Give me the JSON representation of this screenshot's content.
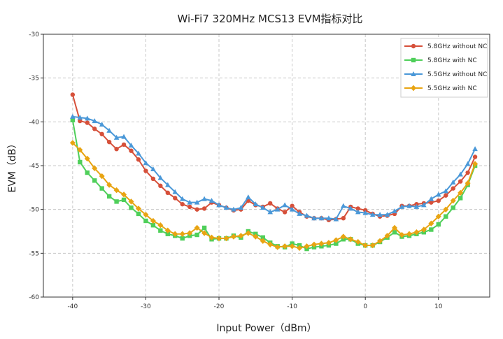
{
  "chart_data": {
    "type": "line",
    "title": "Wi-Fi7 320MHz MCS13 EVM指标对比",
    "xlabel": "Input Power（dBm）",
    "ylabel": "EVM（dB）",
    "xlim": [
      -44,
      17
    ],
    "ylim": [
      -60,
      -30
    ],
    "xticks": [
      -40,
      -30,
      -20,
      -10,
      0,
      10
    ],
    "yticks": [
      -60,
      -55,
      -50,
      -45,
      -40,
      -35,
      -30
    ],
    "grid": true,
    "legend_position": "top-right",
    "x": [
      -40,
      -39,
      -38,
      -37,
      -36,
      -35,
      -34,
      -33,
      -32,
      -31,
      -30,
      -29,
      -28,
      -27,
      -26,
      -25,
      -24,
      -23,
      -22,
      -21,
      -20,
      -19,
      -18,
      -17,
      -16,
      -15,
      -14,
      -13,
      -12,
      -11,
      -10,
      -9,
      -8,
      -7,
      -6,
      -5,
      -4,
      -3,
      -2,
      -1,
      0,
      1,
      2,
      3,
      4,
      5,
      6,
      7,
      8,
      9,
      10,
      11,
      12,
      13,
      14,
      15
    ],
    "series": [
      {
        "name": "5.8GHz without NC",
        "color": "#d6503a",
        "marker": "circle",
        "values": [
          -36.9,
          -39.9,
          -40.1,
          -40.8,
          -41.4,
          -42.3,
          -43.1,
          -42.6,
          -43.3,
          -44.3,
          -45.6,
          -46.5,
          -47.3,
          -48.1,
          -48.7,
          -49.4,
          -49.7,
          -50.0,
          -49.9,
          -49.2,
          -49.5,
          -49.8,
          -50.1,
          -50.0,
          -49.0,
          -49.5,
          -49.7,
          -49.3,
          -49.9,
          -50.3,
          -49.6,
          -50.3,
          -50.8,
          -51.0,
          -51.0,
          -51.2,
          -51.1,
          -51.0,
          -49.7,
          -49.9,
          -50.1,
          -50.5,
          -50.8,
          -50.7,
          -50.5,
          -49.6,
          -49.6,
          -49.4,
          -49.3,
          -49.2,
          -49.0,
          -48.4,
          -47.6,
          -46.8,
          -45.8,
          -44.0
        ]
      },
      {
        "name": "5.8GHz with NC",
        "color": "#4fcf5a",
        "marker": "square",
        "values": [
          -39.8,
          -44.6,
          -45.8,
          -46.7,
          -47.6,
          -48.5,
          -49.1,
          -48.9,
          -49.8,
          -50.5,
          -51.3,
          -51.8,
          -52.4,
          -52.8,
          -53.0,
          -53.3,
          -53.0,
          -52.9,
          -52.1,
          -53.4,
          -53.3,
          -53.3,
          -53.0,
          -53.2,
          -52.5,
          -52.8,
          -53.2,
          -53.8,
          -54.2,
          -54.3,
          -53.9,
          -54.1,
          -54.5,
          -54.3,
          -54.2,
          -54.1,
          -53.9,
          -53.4,
          -53.4,
          -53.9,
          -54.1,
          -54.1,
          -53.7,
          -53.2,
          -52.6,
          -53.1,
          -53.0,
          -52.8,
          -52.6,
          -52.3,
          -51.7,
          -50.8,
          -49.8,
          -48.7,
          -47.2,
          -45.0
        ]
      },
      {
        "name": "5.5GHz without NC",
        "color": "#4a98d8",
        "marker": "triangle",
        "values": [
          -39.4,
          -39.5,
          -39.6,
          -39.9,
          -40.3,
          -41.0,
          -41.8,
          -41.7,
          -42.7,
          -43.6,
          -44.7,
          -45.4,
          -46.4,
          -47.2,
          -48.0,
          -48.8,
          -49.2,
          -49.2,
          -48.8,
          -49.0,
          -49.5,
          -49.8,
          -50.0,
          -49.8,
          -48.6,
          -49.4,
          -49.8,
          -50.3,
          -50.0,
          -49.5,
          -50.0,
          -50.5,
          -50.7,
          -51.0,
          -51.0,
          -51.0,
          -51.1,
          -49.6,
          -49.9,
          -50.3,
          -50.4,
          -50.6,
          -50.6,
          -50.6,
          -50.2,
          -49.7,
          -49.6,
          -49.7,
          -49.5,
          -48.8,
          -48.3,
          -47.9,
          -46.9,
          -46.0,
          -44.8,
          -43.1
        ]
      },
      {
        "name": "5.5GHz with NC",
        "color": "#e8a412",
        "marker": "diamond",
        "values": [
          -42.4,
          -43.2,
          -44.2,
          -45.3,
          -46.2,
          -47.2,
          -47.8,
          -48.3,
          -49.1,
          -49.9,
          -50.6,
          -51.3,
          -51.8,
          -52.4,
          -52.8,
          -52.8,
          -52.7,
          -52.1,
          -52.7,
          -53.2,
          -53.3,
          -53.3,
          -53.1,
          -53.0,
          -52.7,
          -53.1,
          -53.6,
          -54.0,
          -54.3,
          -54.2,
          -54.2,
          -54.4,
          -54.2,
          -54.0,
          -53.9,
          -53.8,
          -53.5,
          -53.1,
          -53.4,
          -53.7,
          -54.1,
          -54.1,
          -53.6,
          -53.0,
          -52.1,
          -52.9,
          -52.8,
          -52.6,
          -52.3,
          -51.6,
          -50.8,
          -50.0,
          -49.0,
          -48.1,
          -47.0,
          -44.8
        ]
      }
    ]
  }
}
